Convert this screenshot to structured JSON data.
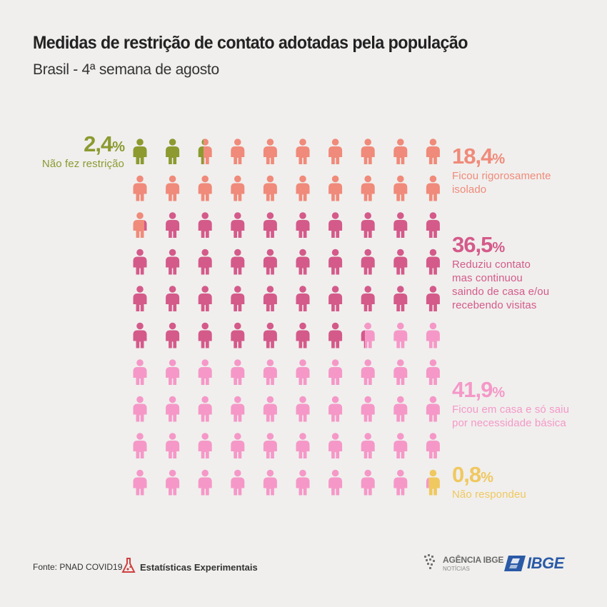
{
  "chart_data": {
    "type": "waffle",
    "title": "Medidas de restrição de contato adotadas pela população",
    "subtitle": "Brasil - 4ª semana de agosto",
    "units_total": 100,
    "series": [
      {
        "name": "Não fez restrição",
        "pct_label": "2,4",
        "value": 2.4,
        "color": "#8c9a30"
      },
      {
        "name": "Ficou rigorosamente isolado",
        "pct_label": "18,4",
        "value": 18.4,
        "color": "#f08a7a"
      },
      {
        "name": "Reduziu contato mas continuou saindo de casa e/ou recebendo visitas",
        "pct_label": "36,5",
        "value": 36.5,
        "color": "#d45a8a"
      },
      {
        "name": "Ficou em casa e só saiu por necessidade básica",
        "pct_label": "41,9",
        "value": 41.9,
        "color": "#f598c8"
      },
      {
        "name": "Não respondeu",
        "pct_label": "0,8",
        "value": 0.8,
        "color": "#f0c860"
      }
    ]
  },
  "labels": {
    "pct_symbol": "%",
    "nao_fez": {
      "pct": "2,4",
      "desc": [
        "Não fez restrição"
      ]
    },
    "isolado": {
      "pct": "18,4",
      "desc": [
        "Ficou rigorosamente",
        "isolado"
      ]
    },
    "reduziu": {
      "pct": "36,5",
      "desc": [
        "Reduziu contato",
        "mas continuou",
        "saindo de casa e/ou",
        "recebendo visitas"
      ]
    },
    "ficou": {
      "pct": "41,9",
      "desc": [
        "Ficou em casa e só saiu",
        "por necessidade básica"
      ]
    },
    "nao_resp": {
      "pct": "0,8",
      "desc": [
        "Não respondeu"
      ]
    }
  },
  "footer": {
    "source": "Fonte: PNAD COVID19",
    "experimental": "Estatísticas Experimentais",
    "agencia_line1": "AGÊNCIA IBGE",
    "agencia_line2": "NOTÍCIAS",
    "ibge": "IBGE"
  }
}
